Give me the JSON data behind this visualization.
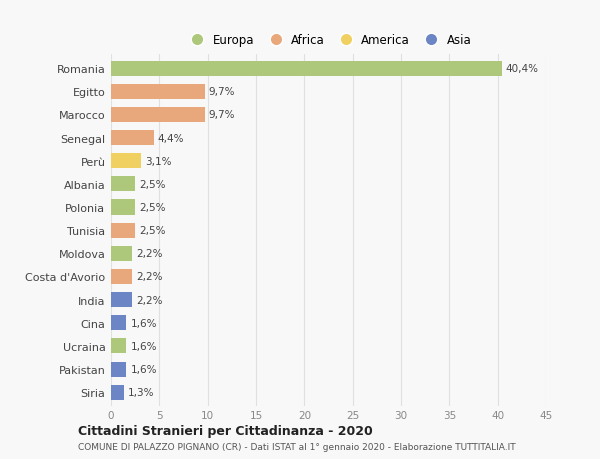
{
  "countries": [
    "Romania",
    "Egitto",
    "Marocco",
    "Senegal",
    "Perù",
    "Albania",
    "Polonia",
    "Tunisia",
    "Moldova",
    "Costa d'Avorio",
    "India",
    "Cina",
    "Ucraina",
    "Pakistan",
    "Siria"
  ],
  "values": [
    40.4,
    9.7,
    9.7,
    4.4,
    3.1,
    2.5,
    2.5,
    2.5,
    2.2,
    2.2,
    2.2,
    1.6,
    1.6,
    1.6,
    1.3
  ],
  "labels": [
    "40,4%",
    "9,7%",
    "9,7%",
    "4,4%",
    "3,1%",
    "2,5%",
    "2,5%",
    "2,5%",
    "2,2%",
    "2,2%",
    "2,2%",
    "1,6%",
    "1,6%",
    "1,6%",
    "1,3%"
  ],
  "categories": [
    "Europa",
    "Africa",
    "Africa",
    "Africa",
    "America",
    "Europa",
    "Europa",
    "Africa",
    "Europa",
    "Africa",
    "Asia",
    "Asia",
    "Europa",
    "Asia",
    "Asia"
  ],
  "colors": {
    "Europa": "#adc87a",
    "Africa": "#e8a87c",
    "America": "#f0d060",
    "Asia": "#6b85c5"
  },
  "legend_order": [
    "Europa",
    "Africa",
    "America",
    "Asia"
  ],
  "legend_colors": [
    "#adc87a",
    "#e8a87c",
    "#f0d060",
    "#6b85c5"
  ],
  "xlim": [
    0,
    45
  ],
  "xticks": [
    0,
    5,
    10,
    15,
    20,
    25,
    30,
    35,
    40,
    45
  ],
  "title": "Cittadini Stranieri per Cittadinanza - 2020",
  "subtitle": "COMUNE DI PALAZZO PIGNANO (CR) - Dati ISTAT al 1° gennaio 2020 - Elaborazione TUTTITALIA.IT",
  "background_color": "#f8f8f8",
  "grid_color": "#e0e0e0",
  "bar_height": 0.65
}
